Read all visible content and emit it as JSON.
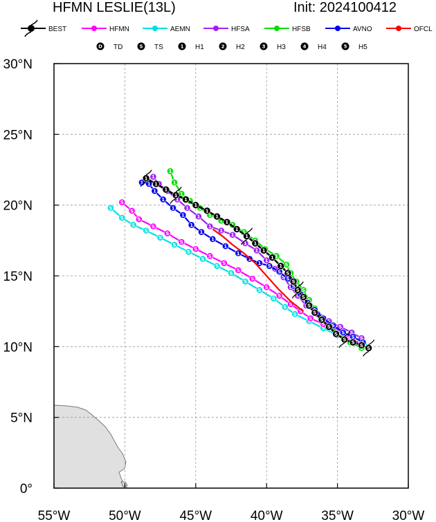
{
  "title_left": "HFMN LESLIE(13L)",
  "title_right": "Init: 2024100412",
  "legend": [
    {
      "name": "BEST",
      "color": "#000000"
    },
    {
      "name": "HFMN",
      "color": "#ff00ff"
    },
    {
      "name": "AEMN",
      "color": "#00e0e0"
    },
    {
      "name": "HFSA",
      "color": "#a020f0"
    },
    {
      "name": "HFSB",
      "color": "#00e000"
    },
    {
      "name": "AVNO",
      "color": "#0000ee"
    },
    {
      "name": "OFCL",
      "color": "#ff0000"
    }
  ],
  "intensity_key": [
    {
      "symbol": "D",
      "label": "TD"
    },
    {
      "symbol": "S",
      "label": "TS"
    },
    {
      "symbol": "1",
      "label": "H1"
    },
    {
      "symbol": "2",
      "label": "H2"
    },
    {
      "symbol": "3",
      "label": "H3"
    },
    {
      "symbol": "4",
      "label": "H4"
    },
    {
      "symbol": "5",
      "label": "H5"
    }
  ],
  "axes": {
    "lon_range": [
      -55,
      -30
    ],
    "lat_range": [
      0,
      30
    ],
    "x_ticks": [
      "55°W",
      "50°W",
      "45°W",
      "40°W",
      "35°W",
      "30°W"
    ],
    "y_ticks": [
      "0°",
      "5°N",
      "10°N",
      "15°N",
      "20°N",
      "25°N",
      "30°N"
    ],
    "grid": "dashed gray at 5° intervals"
  },
  "land": {
    "fill": "#e0e0e0",
    "outline": "#777777",
    "region": "northeastern South America (lower-left corner)"
  },
  "chart_data": {
    "type": "map",
    "tracks": [
      {
        "name": "BEST",
        "color": "#000000",
        "symbols": "S→1 along track",
        "points": [
          [
            -32.8,
            9.9
          ],
          [
            -33.3,
            10.1
          ],
          [
            -33.9,
            10.3
          ],
          [
            -34.5,
            10.5
          ],
          [
            -35.1,
            10.9
          ],
          [
            -35.6,
            11.4
          ],
          [
            -36.1,
            11.9
          ],
          [
            -36.6,
            12.4
          ],
          [
            -37.0,
            12.9
          ],
          [
            -37.4,
            13.5
          ],
          [
            -37.8,
            14.0
          ],
          [
            -38.1,
            14.6
          ],
          [
            -38.5,
            15.2
          ],
          [
            -39.0,
            15.7
          ],
          [
            -39.6,
            16.3
          ],
          [
            -40.2,
            16.8
          ],
          [
            -40.8,
            17.3
          ],
          [
            -41.4,
            17.8
          ],
          [
            -42.1,
            18.3
          ],
          [
            -42.8,
            18.8
          ],
          [
            -43.5,
            19.2
          ],
          [
            -44.2,
            19.6
          ],
          [
            -45.0,
            20.0
          ],
          [
            -45.7,
            20.4
          ],
          [
            -46.4,
            20.7
          ],
          [
            -47.1,
            21.1
          ],
          [
            -47.8,
            21.5
          ],
          [
            -48.5,
            21.9
          ]
        ]
      },
      {
        "name": "HFMN",
        "color": "#ff00ff",
        "symbols": "S",
        "points": [
          [
            -33.3,
            10.2
          ],
          [
            -34.2,
            10.6
          ],
          [
            -35.1,
            11.1
          ],
          [
            -36.0,
            11.6
          ],
          [
            -36.9,
            12.0
          ],
          [
            -37.6,
            12.5
          ],
          [
            -38.3,
            13.0
          ],
          [
            -39.1,
            13.6
          ],
          [
            -40.0,
            14.2
          ],
          [
            -41.0,
            14.8
          ],
          [
            -42.0,
            15.4
          ],
          [
            -43.0,
            15.9
          ],
          [
            -44.0,
            16.4
          ],
          [
            -45.0,
            16.9
          ],
          [
            -46.0,
            17.4
          ],
          [
            -47.0,
            18.0
          ],
          [
            -48.0,
            18.5
          ],
          [
            -49.0,
            19.0
          ],
          [
            -49.5,
            19.6
          ],
          [
            -50.2,
            20.2
          ]
        ]
      },
      {
        "name": "AEMN",
        "color": "#00e0e0",
        "symbols": "S",
        "points": [
          [
            -33.0,
            10.0
          ],
          [
            -34.0,
            10.4
          ],
          [
            -35.0,
            10.8
          ],
          [
            -36.0,
            11.3
          ],
          [
            -37.0,
            11.8
          ],
          [
            -38.0,
            12.3
          ],
          [
            -38.7,
            12.8
          ],
          [
            -39.5,
            13.4
          ],
          [
            -40.5,
            14.0
          ],
          [
            -41.5,
            14.6
          ],
          [
            -42.5,
            15.2
          ],
          [
            -43.5,
            15.7
          ],
          [
            -44.5,
            16.2
          ],
          [
            -45.5,
            16.7
          ],
          [
            -46.5,
            17.2
          ],
          [
            -47.5,
            17.7
          ],
          [
            -48.5,
            18.2
          ],
          [
            -49.4,
            18.6
          ],
          [
            -50.2,
            19.1
          ],
          [
            -51.0,
            19.8
          ]
        ]
      },
      {
        "name": "HFSA",
        "color": "#a020f0",
        "symbols": "S→1",
        "points": [
          [
            -33.3,
            10.6
          ],
          [
            -34.0,
            11.0
          ],
          [
            -34.8,
            11.4
          ],
          [
            -35.6,
            11.8
          ],
          [
            -36.4,
            12.3
          ],
          [
            -37.2,
            12.9
          ],
          [
            -37.8,
            13.6
          ],
          [
            -38.3,
            14.2
          ],
          [
            -38.8,
            14.9
          ],
          [
            -39.4,
            15.5
          ],
          [
            -40.0,
            16.1
          ],
          [
            -40.7,
            16.8
          ],
          [
            -41.5,
            17.3
          ],
          [
            -42.4,
            17.9
          ],
          [
            -43.2,
            18.2
          ],
          [
            -44.0,
            18.5
          ],
          [
            -44.8,
            19.2
          ],
          [
            -45.6,
            19.8
          ],
          [
            -46.3,
            20.4
          ],
          [
            -47.0,
            21.0
          ],
          [
            -47.6,
            21.5
          ],
          [
            -48.0,
            22.0
          ]
        ]
      },
      {
        "name": "HFSB",
        "color": "#00e000",
        "symbols": "S→1",
        "points": [
          [
            -33.3,
            9.9
          ],
          [
            -34.1,
            10.3
          ],
          [
            -34.9,
            10.9
          ],
          [
            -35.6,
            11.5
          ],
          [
            -36.2,
            12.1
          ],
          [
            -36.6,
            12.7
          ],
          [
            -37.0,
            13.3
          ],
          [
            -37.4,
            14.0
          ],
          [
            -37.9,
            14.6
          ],
          [
            -38.3,
            15.2
          ],
          [
            -38.6,
            15.8
          ],
          [
            -39.3,
            16.4
          ],
          [
            -40.1,
            16.9
          ],
          [
            -40.8,
            17.5
          ],
          [
            -41.6,
            18.1
          ],
          [
            -42.4,
            18.6
          ],
          [
            -43.2,
            18.9
          ],
          [
            -44.0,
            19.3
          ],
          [
            -44.7,
            19.8
          ],
          [
            -45.4,
            20.3
          ],
          [
            -46.0,
            20.8
          ],
          [
            -46.5,
            21.6
          ],
          [
            -46.8,
            22.4
          ]
        ]
      },
      {
        "name": "AVNO",
        "color": "#0000ee",
        "symbols": "S→1",
        "points": [
          [
            -33.2,
            10.3
          ],
          [
            -33.9,
            10.7
          ],
          [
            -34.6,
            11.0
          ],
          [
            -35.3,
            11.5
          ],
          [
            -36.0,
            12.0
          ],
          [
            -36.6,
            12.6
          ],
          [
            -37.1,
            13.1
          ],
          [
            -37.6,
            13.7
          ],
          [
            -38.1,
            14.3
          ],
          [
            -38.5,
            14.8
          ],
          [
            -39.1,
            15.3
          ],
          [
            -39.8,
            15.7
          ],
          [
            -40.5,
            15.9
          ],
          [
            -41.2,
            16.2
          ],
          [
            -42.0,
            16.6
          ],
          [
            -42.9,
            17.1
          ],
          [
            -43.8,
            17.6
          ],
          [
            -44.6,
            18.1
          ],
          [
            -45.3,
            18.6
          ],
          [
            -45.9,
            19.3
          ],
          [
            -46.6,
            19.8
          ],
          [
            -47.3,
            20.4
          ],
          [
            -47.9,
            21.0
          ],
          [
            -48.3,
            21.5
          ],
          [
            -48.8,
            21.6
          ]
        ]
      },
      {
        "name": "OFCL",
        "color": "#ff0000",
        "symbols": "none",
        "points": [
          [
            -37.4,
            12.5
          ],
          [
            -38.3,
            13.2
          ],
          [
            -39.2,
            14.1
          ],
          [
            -40.0,
            15.0
          ],
          [
            -40.8,
            15.9
          ],
          [
            -41.6,
            16.6
          ],
          [
            -42.4,
            17.2
          ],
          [
            -43.1,
            17.8
          ],
          [
            -43.8,
            18.3
          ]
        ]
      }
    ]
  }
}
